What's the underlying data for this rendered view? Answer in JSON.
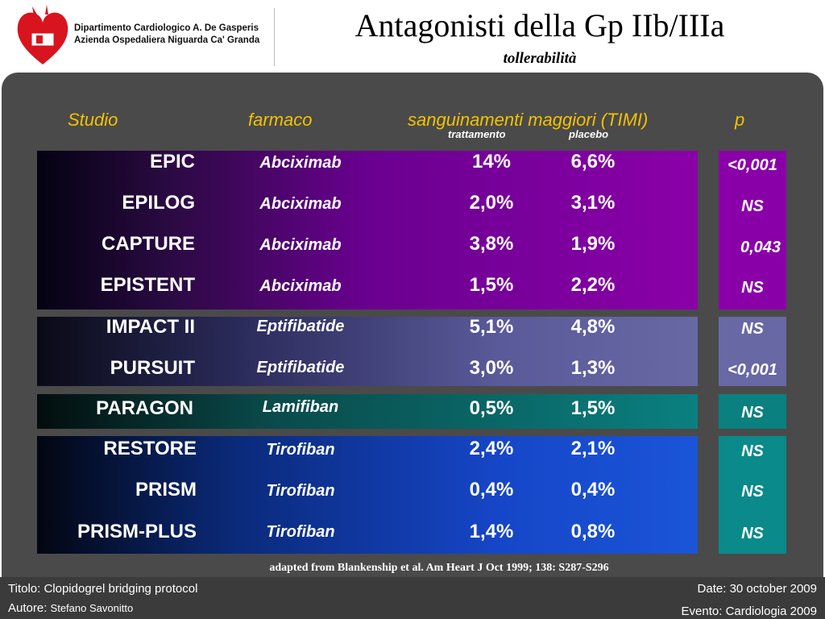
{
  "header": {
    "logo_line1": "Dipartimento Cardiologico A. De Gasperis",
    "logo_line2": "Azienda Ospedaliera Niguarda Ca' Granda",
    "title": "Antagonisti della Gp IIb/IIIa",
    "subtitle": "tollerabilità"
  },
  "table": {
    "headers": {
      "study": "Studio",
      "drug": "farmaco",
      "bleeding": "sanguinamenti maggiori (TIMI)",
      "p": "p",
      "treatment": "trattamento",
      "placebo": "placebo"
    },
    "rows": [
      {
        "study": "EPIC",
        "drug": "Abciximab",
        "treatment": "14%",
        "placebo": "6,6%",
        "p": "<0,001"
      },
      {
        "study": "EPILOG",
        "drug": "Abciximab",
        "treatment": "2,0%",
        "placebo": "3,1%",
        "p": "NS"
      },
      {
        "study": "CAPTURE",
        "drug": "Abciximab",
        "treatment": "3,8%",
        "placebo": "1,9%",
        "p": "0,043"
      },
      {
        "study": "EPISTENT",
        "drug": "Abciximab",
        "treatment": "1,5%",
        "placebo": "2,2%",
        "p": "NS"
      },
      {
        "study": "IMPACT II",
        "drug": "Eptifibatide",
        "treatment": "5,1%",
        "placebo": "4,8%",
        "p": "NS"
      },
      {
        "study": "PURSUIT",
        "drug": "Eptifibatide",
        "treatment": "3,0%",
        "placebo": "1,3%",
        "p": "<0,001"
      },
      {
        "study": "PARAGON",
        "drug": "Lamifiban",
        "treatment": "0,5%",
        "placebo": "1,5%",
        "p": "NS"
      },
      {
        "study": "RESTORE",
        "drug": "Tirofiban",
        "treatment": "2,4%",
        "placebo": "2,1%",
        "p": "NS"
      },
      {
        "study": "PRISM",
        "drug": "Tirofiban",
        "treatment": "0,4%",
        "placebo": "0,4%",
        "p": "NS"
      },
      {
        "study": "PRISM-PLUS",
        "drug": "Tirofiban",
        "treatment": "1,4%",
        "placebo": "0,8%",
        "p": "NS"
      }
    ]
  },
  "citation": "adapted from Blankenship et al. Am Heart J Oct 1999; 138: S287-S296",
  "footer": {
    "title": "Titolo: Clopidogrel bridging protocol",
    "author_label": "Autore:",
    "author": "Stefano Savonitto",
    "date": "Date: 30 october 2009",
    "event": "Evento: Cardiologia 2009"
  },
  "colors": {
    "header_accent": "#f2c200",
    "abciximab_band": "#8a00a8",
    "eptifibatide_band": "#6868a4",
    "lamifiban_band": "#0a8080",
    "tirofiban_band": "#1a55d8"
  }
}
